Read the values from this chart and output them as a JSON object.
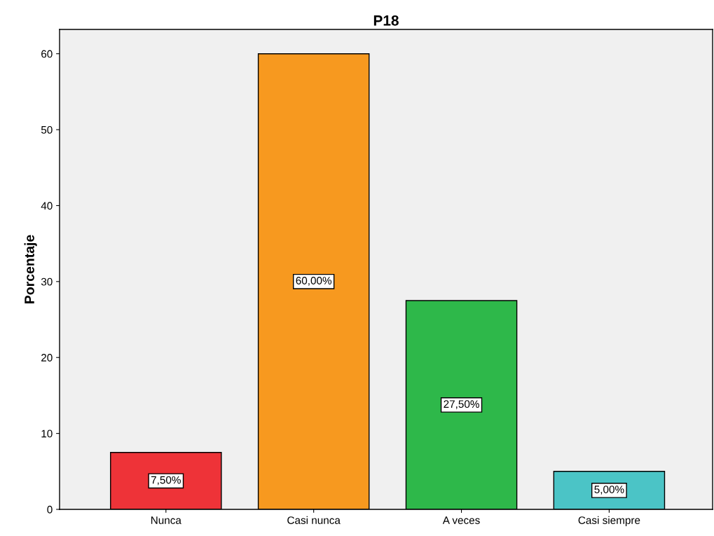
{
  "chart_data": {
    "type": "bar",
    "title": "P18",
    "ylabel": "Porcentaje",
    "categories": [
      "Nunca",
      "Casi nunca",
      "A veces",
      "Casi siempre"
    ],
    "values": [
      7.5,
      60,
      27.5,
      5
    ],
    "value_labels": [
      "7,50%",
      "60,00%",
      "27,50%",
      "5,00%"
    ],
    "colors": [
      "#ee3338",
      "#f7991f",
      "#2eb84a",
      "#4bc4c6"
    ],
    "ylim": [
      0,
      63.2
    ],
    "yticks": [
      0,
      10,
      20,
      30,
      40,
      50,
      60
    ],
    "grid": false,
    "legend": false
  }
}
